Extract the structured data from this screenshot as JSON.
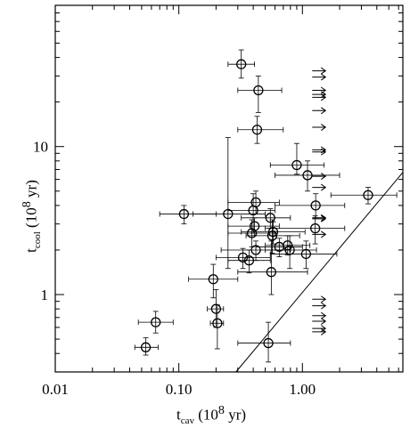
{
  "chart_data": {
    "type": "scatter",
    "xscale": "log",
    "yscale": "log",
    "xlim": [
      0.01,
      6.5
    ],
    "ylim": [
      0.3,
      90
    ],
    "grid": false,
    "xlabel": {
      "main": "t",
      "sub": "cav",
      "unit": " (10",
      "exp": "8",
      "tail": " yr)"
    },
    "ylabel": {
      "main": "t",
      "sub": "cool",
      "unit": " (10",
      "exp": "8",
      "tail": " yr)"
    },
    "xticks": [
      {
        "value": 0.01,
        "label": "0.01"
      },
      {
        "value": 0.1,
        "label": "0.10"
      },
      {
        "value": 1.0,
        "label": "1.00"
      }
    ],
    "yticks": [
      {
        "value": 1,
        "label": "1"
      },
      {
        "value": 10,
        "label": "10"
      }
    ],
    "reference_line": {
      "x": [
        0.29,
        6.5
      ],
      "y": [
        0.3,
        6.7
      ]
    },
    "points": [
      {
        "x": 0.054,
        "y": 0.44,
        "xerr": [
          0.044,
          0.068
        ],
        "yerr": [
          0.39,
          0.51
        ]
      },
      {
        "x": 0.065,
        "y": 0.65,
        "xerr": [
          0.047,
          0.09
        ],
        "yerr": [
          0.55,
          0.77
        ]
      },
      {
        "x": 0.11,
        "y": 3.5,
        "xerr": [
          0.07,
          0.2
        ],
        "yerr": [
          3.0,
          4.0
        ]
      },
      {
        "x": 0.19,
        "y": 1.27,
        "xerr": [
          0.12,
          0.3
        ],
        "yerr": [
          0.95,
          1.6
        ]
      },
      {
        "x": 0.2,
        "y": 0.8,
        "xerr": [
          0.17,
          0.23
        ],
        "yerr": [
          0.6,
          1.08
        ]
      },
      {
        "x": 0.205,
        "y": 0.64,
        "xerr": [
          0.18,
          0.23
        ],
        "yerr": [
          0.43,
          0.85
        ]
      },
      {
        "x": 0.25,
        "y": 3.5,
        "xerr": [
          0.13,
          0.5
        ],
        "yerr": [
          1.5,
          11.5
        ]
      },
      {
        "x": 0.32,
        "y": 36,
        "xerr": [
          0.25,
          0.41
        ],
        "yerr": [
          29,
          45
        ]
      },
      {
        "x": 0.33,
        "y": 1.78,
        "xerr": [
          0.2,
          0.55
        ],
        "yerr": [
          1.5,
          2.05
        ]
      },
      {
        "x": 0.37,
        "y": 1.7,
        "xerr": [
          0.25,
          0.55
        ],
        "yerr": [
          1.4,
          2.0
        ]
      },
      {
        "x": 0.39,
        "y": 2.6,
        "xerr": [
          0.25,
          0.6
        ],
        "yerr": [
          2.1,
          3.2
        ]
      },
      {
        "x": 0.4,
        "y": 3.7,
        "xerr": [
          0.25,
          0.6
        ],
        "yerr": [
          2.6,
          4.8
        ]
      },
      {
        "x": 0.41,
        "y": 2.9,
        "xerr": [
          0.25,
          0.65
        ],
        "yerr": [
          2.5,
          3.3
        ]
      },
      {
        "x": 0.42,
        "y": 4.2,
        "xerr": [
          0.25,
          0.65
        ],
        "yerr": [
          3.5,
          5.0
        ]
      },
      {
        "x": 0.42,
        "y": 2.0,
        "xerr": [
          0.22,
          0.8
        ],
        "yerr": [
          1.7,
          2.3
        ]
      },
      {
        "x": 0.43,
        "y": 13,
        "xerr": [
          0.3,
          0.7
        ],
        "yerr": [
          10.5,
          16
        ]
      },
      {
        "x": 0.44,
        "y": 24,
        "xerr": [
          0.3,
          0.68
        ],
        "yerr": [
          17,
          30
        ]
      },
      {
        "x": 0.53,
        "y": 0.47,
        "xerr": [
          0.3,
          0.8
        ],
        "yerr": [
          0.35,
          0.65
        ]
      },
      {
        "x": 0.55,
        "y": 3.3,
        "xerr": [
          0.32,
          0.8
        ],
        "yerr": [
          2.8,
          3.8
        ]
      },
      {
        "x": 0.56,
        "y": 1.42,
        "xerr": [
          0.3,
          1.1
        ],
        "yerr": [
          1.0,
          2.3
        ]
      },
      {
        "x": 0.57,
        "y": 2.5,
        "xerr": [
          0.35,
          0.95
        ],
        "yerr": [
          1.9,
          3.2
        ]
      },
      {
        "x": 0.58,
        "y": 2.65,
        "xerr": [
          0.32,
          1.05
        ],
        "yerr": [
          2.2,
          3.1
        ]
      },
      {
        "x": 0.65,
        "y": 2.1,
        "xerr": [
          0.42,
          1.0
        ],
        "yerr": [
          1.8,
          2.4
        ]
      },
      {
        "x": 0.76,
        "y": 2.15,
        "xerr": [
          0.5,
          1.15
        ],
        "yerr": [
          1.85,
          2.5
        ]
      },
      {
        "x": 0.79,
        "y": 2.0,
        "xerr": [
          0.5,
          1.3
        ],
        "yerr": [
          1.5,
          2.5
        ]
      },
      {
        "x": 0.9,
        "y": 7.5,
        "xerr": [
          0.55,
          1.5
        ],
        "yerr": [
          6.5,
          10.5
        ]
      },
      {
        "x": 1.07,
        "y": 1.88,
        "xerr": [
          0.55,
          1.9
        ],
        "yerr": [
          1.5,
          2.3
        ]
      },
      {
        "x": 1.1,
        "y": 6.4,
        "xerr": [
          0.6,
          2.0
        ],
        "yerr": [
          5.0,
          8.0
        ]
      },
      {
        "x": 1.27,
        "y": 2.8,
        "xerr": [
          0.5,
          2.2
        ],
        "yerr": [
          2.2,
          3.4
        ]
      },
      {
        "x": 1.28,
        "y": 4.0,
        "xerr": [
          0.6,
          2.2
        ],
        "yerr": [
          3.3,
          4.8
        ]
      },
      {
        "x": 3.4,
        "y": 4.7,
        "xerr": [
          1.7,
          5.8
        ],
        "yerr": [
          4.1,
          5.3
        ]
      }
    ],
    "limit_arrows": {
      "x": 1.2,
      "y": [
        32.5,
        29.5,
        24.0,
        22.5,
        21.5,
        17.5,
        13.5,
        9.5,
        9.2,
        6.3,
        5.3,
        3.3,
        3.25,
        2.55,
        0.93,
        0.84,
        0.72,
        0.66,
        0.59,
        0.56
      ]
    },
    "style": {
      "color": "#000000",
      "background": "#ffffff"
    }
  }
}
